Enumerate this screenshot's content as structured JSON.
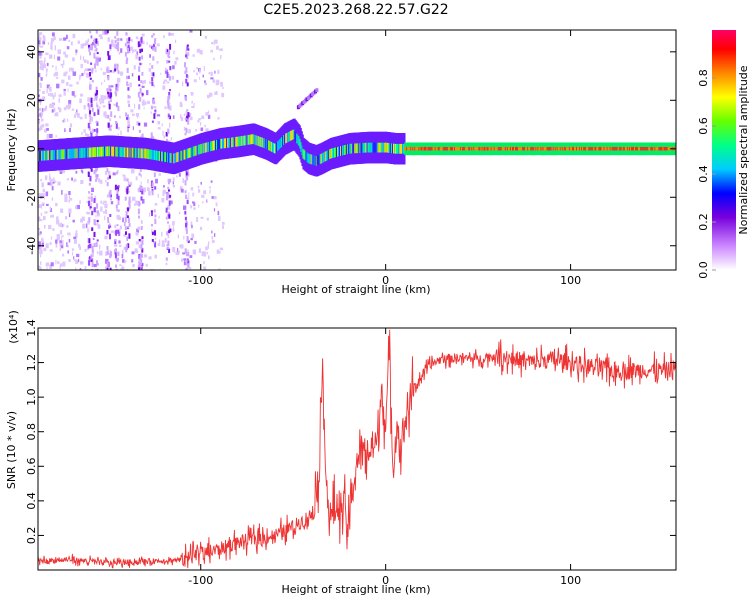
{
  "title": "C2E5.2023.268.22.57.G22",
  "chart_data": [
    {
      "type": "heatmap",
      "xlabel": "Height of straight line (km)",
      "ylabel": "Frequency (Hz)",
      "xlim": [
        -188,
        157
      ],
      "ylim": [
        -50,
        49
      ],
      "xticks": [
        -100,
        0,
        100
      ],
      "yticks": [
        -40,
        -20,
        0,
        20,
        40
      ],
      "grid": false,
      "colorbar": {
        "label": "Normalized spectral amplitude",
        "range": [
          0,
          1
        ],
        "ticks": [
          "0.0",
          "0.2",
          "0.4",
          "0.6",
          "0.8"
        ],
        "colors": [
          "#ffffff",
          "#cc88ff",
          "#7700dd",
          "#0000ff",
          "#00ffff",
          "#00ff00",
          "#ffff00",
          "#ff8800",
          "#ff0000",
          "#ff0088"
        ]
      },
      "ridge": {
        "x": [
          -188,
          -170,
          -150,
          -130,
          -115,
          -100,
          -90,
          -80,
          -72,
          -65,
          -60,
          -55,
          -50,
          -47,
          -45,
          -42,
          -38,
          -35,
          -30,
          -25,
          -20,
          -10,
          0,
          5,
          10,
          157
        ],
        "y": [
          -3,
          -2,
          -1,
          -2,
          -4,
          0,
          2,
          3,
          4,
          2,
          0,
          4,
          6,
          3,
          -2,
          -4,
          -5,
          -4,
          -2,
          -1,
          0,
          0.5,
          0.5,
          0,
          0,
          0
        ]
      },
      "isolated_feature": {
        "x": [
          -48,
          -38
        ],
        "y": [
          18,
          25
        ]
      }
    },
    {
      "type": "line",
      "xlabel": "Height of straight line (km)",
      "ylabel": "SNR (10 * v/v)",
      "yunit": "(x10⁴)",
      "xlim": [
        -188,
        157
      ],
      "ylim": [
        0,
        1.4
      ],
      "xticks": [
        -100,
        0,
        100
      ],
      "yticks": [
        "0.2",
        "0.4",
        "0.6",
        "0.8",
        "1.0",
        "1.2",
        "1.4"
      ],
      "color": "#ee3333",
      "grid": false,
      "series": [
        {
          "x": [
            -188,
            -170,
            -150,
            -130,
            -110,
            -100,
            -90,
            -80,
            -70,
            -60,
            -50,
            -40,
            -36,
            -34,
            -32,
            -30,
            -26,
            -22,
            -20,
            -18,
            -16,
            -12,
            -8,
            -4,
            -2,
            0,
            2,
            4,
            6,
            8,
            10,
            14,
            18,
            22,
            26,
            30,
            40,
            50,
            60,
            70,
            80,
            90,
            100,
            110,
            120,
            130,
            140,
            150,
            157
          ],
          "y": [
            0.05,
            0.06,
            0.04,
            0.05,
            0.06,
            0.09,
            0.12,
            0.16,
            0.18,
            0.2,
            0.25,
            0.32,
            0.55,
            1.22,
            0.45,
            0.3,
            0.38,
            0.35,
            0.22,
            0.45,
            0.62,
            0.68,
            0.7,
            0.74,
            1.1,
            0.78,
            1.28,
            0.58,
            0.86,
            0.7,
            0.84,
            1.02,
            1.1,
            1.16,
            1.2,
            1.22,
            1.23,
            1.22,
            1.24,
            1.22,
            1.2,
            1.22,
            1.2,
            1.18,
            1.16,
            1.15,
            1.16,
            1.15,
            1.17
          ]
        }
      ]
    }
  ]
}
